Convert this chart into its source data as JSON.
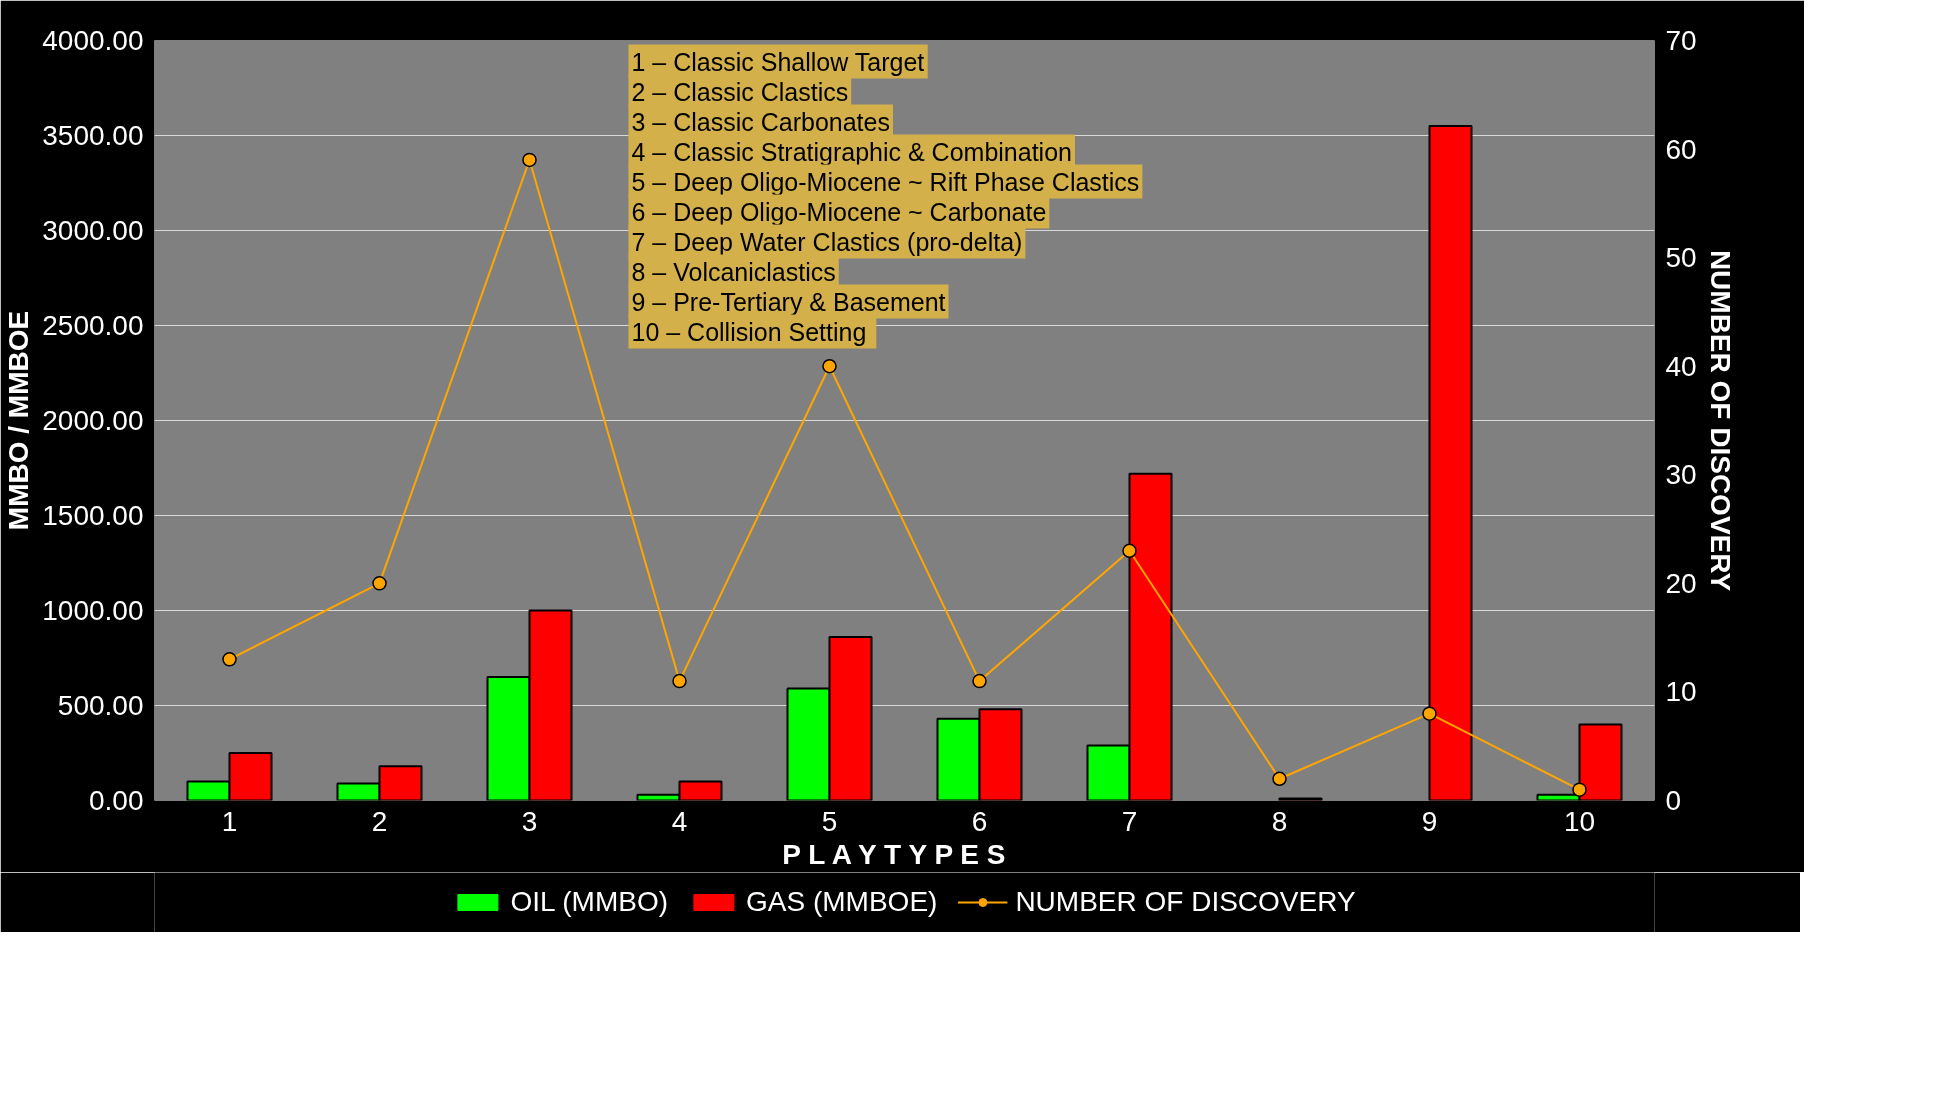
{
  "chart_data": {
    "type": "bar",
    "xlabel": "P L A Y   T Y P E S",
    "ylabel": "MMBO / MMBOE",
    "y2label": "NUMBER OF DISCOVERY",
    "categories": [
      "1",
      "2",
      "3",
      "4",
      "5",
      "6",
      "7",
      "8",
      "9",
      "10"
    ],
    "series": [
      {
        "name": "OIL (MMBO)",
        "color": "#00ff00",
        "values": [
          100,
          90,
          650,
          30,
          590,
          430,
          290,
          null,
          null,
          30
        ]
      },
      {
        "name": "GAS (MMBOE)",
        "color": "#ff0000",
        "values": [
          250,
          180,
          1000,
          100,
          860,
          480,
          1720,
          10,
          3550,
          400
        ]
      },
      {
        "name": "NUMBER OF DISCOVERY",
        "type": "line",
        "axis": "y2",
        "color": "#ffa500",
        "marker": "circle",
        "values": [
          13,
          20,
          59,
          11,
          40,
          11,
          23,
          2,
          8,
          1
        ]
      }
    ],
    "ylim": [
      0,
      4000
    ],
    "yticks": [
      {
        "value": 0,
        "label": "0.00"
      },
      {
        "value": 500,
        "label": "500.00"
      },
      {
        "value": 1000,
        "label": "1000.00"
      },
      {
        "value": 1500,
        "label": "1500.00"
      },
      {
        "value": 2000,
        "label": "2000.00"
      },
      {
        "value": 2500,
        "label": "2500.00"
      },
      {
        "value": 3000,
        "label": "3000.00"
      },
      {
        "value": 3500,
        "label": "3500.00"
      },
      {
        "value": 4000,
        "label": "4000.00"
      }
    ],
    "y2lim": [
      0,
      70
    ],
    "y2ticks": [
      0,
      10,
      20,
      30,
      40,
      50,
      60,
      70
    ],
    "grid": "y",
    "legend": "bottom",
    "annotations": [
      "1 – Classic Shallow Target",
      "2 – Classic Clastics",
      "3 – Classic Carbonates",
      "4 – Classic Stratigraphic & Combination",
      "5 – Deep Oligo-Miocene ~ Rift Phase Clastics",
      "6 – Deep Oligo-Miocene ~ Carbonate",
      "7 – Deep Water Clastics (pro-delta)",
      "8 – Volcaniclastics",
      "9 – Pre-Tertiary & Basement",
      "10 – Collision  Setting"
    ]
  }
}
